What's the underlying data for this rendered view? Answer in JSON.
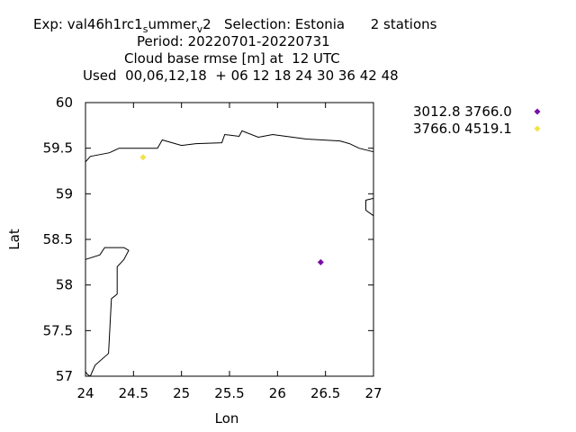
{
  "header": {
    "line1_exp": "Exp: val46h1rc1",
    "line1_sub1": "s",
    "line1_mid": "ummer",
    "line1_sub2": "v",
    "line1_end": "2   Selection: Estonia      2 stations",
    "line2": "Period: 20220701-20220731",
    "line3": "Cloud base rmse [m] at  12 UTC",
    "line4": "Used  00,06,12,18  + 06 12 18 24 30 36 42 48"
  },
  "chart_data": {
    "type": "scatter",
    "xlabel": "Lon",
    "ylabel": "Lat",
    "xlim": [
      24,
      27
    ],
    "ylim": [
      57,
      60
    ],
    "xticks": [
      24,
      24.5,
      25,
      25.5,
      26,
      26.5,
      27
    ],
    "xtick_labels": [
      "24",
      "24.5",
      "25",
      "25.5",
      "26",
      "26.5",
      "27"
    ],
    "yticks": [
      57,
      57.5,
      58,
      58.5,
      59,
      59.5,
      60
    ],
    "ytick_labels": [
      "57",
      "57.5",
      "58",
      "58.5",
      "59",
      "59.5",
      "60"
    ],
    "grid": false,
    "legend_position": "right",
    "series": [
      {
        "name": "3012.8 3766.0",
        "color": "#7a0ea8",
        "points": [
          [
            26.45,
            58.25
          ]
        ]
      },
      {
        "name": "3766.0 4519.1",
        "color": "#f2e24a",
        "points": [
          [
            24.6,
            59.4
          ]
        ]
      }
    ],
    "coastlines": [
      [
        [
          24.0,
          59.35
        ],
        [
          24.05,
          59.41
        ],
        [
          24.25,
          59.45
        ],
        [
          24.35,
          59.5
        ],
        [
          24.75,
          59.5
        ],
        [
          24.8,
          59.59
        ],
        [
          25.0,
          59.53
        ],
        [
          25.15,
          59.55
        ],
        [
          25.42,
          59.56
        ],
        [
          25.45,
          59.65
        ],
        [
          25.6,
          59.63
        ],
        [
          25.63,
          59.69
        ],
        [
          25.8,
          59.62
        ],
        [
          25.95,
          59.65
        ],
        [
          26.3,
          59.6
        ],
        [
          26.65,
          59.58
        ],
        [
          26.75,
          59.55
        ],
        [
          26.85,
          59.5
        ],
        [
          27.0,
          59.46
        ]
      ],
      [
        [
          27.0,
          58.95
        ],
        [
          26.92,
          58.93
        ],
        [
          26.92,
          58.82
        ],
        [
          27.0,
          58.76
        ]
      ],
      [
        [
          24.0,
          58.28
        ],
        [
          24.15,
          58.33
        ],
        [
          24.2,
          58.41
        ],
        [
          24.4,
          58.41
        ],
        [
          24.45,
          58.38
        ],
        [
          24.4,
          58.28
        ],
        [
          24.33,
          58.2
        ],
        [
          24.33,
          57.9
        ],
        [
          24.27,
          57.85
        ],
        [
          24.24,
          57.25
        ],
        [
          24.1,
          57.12
        ],
        [
          24.05,
          57.0
        ]
      ],
      [
        [
          24.0,
          57.05
        ],
        [
          24.02,
          57.02
        ],
        [
          24.05,
          57.0
        ]
      ]
    ]
  }
}
